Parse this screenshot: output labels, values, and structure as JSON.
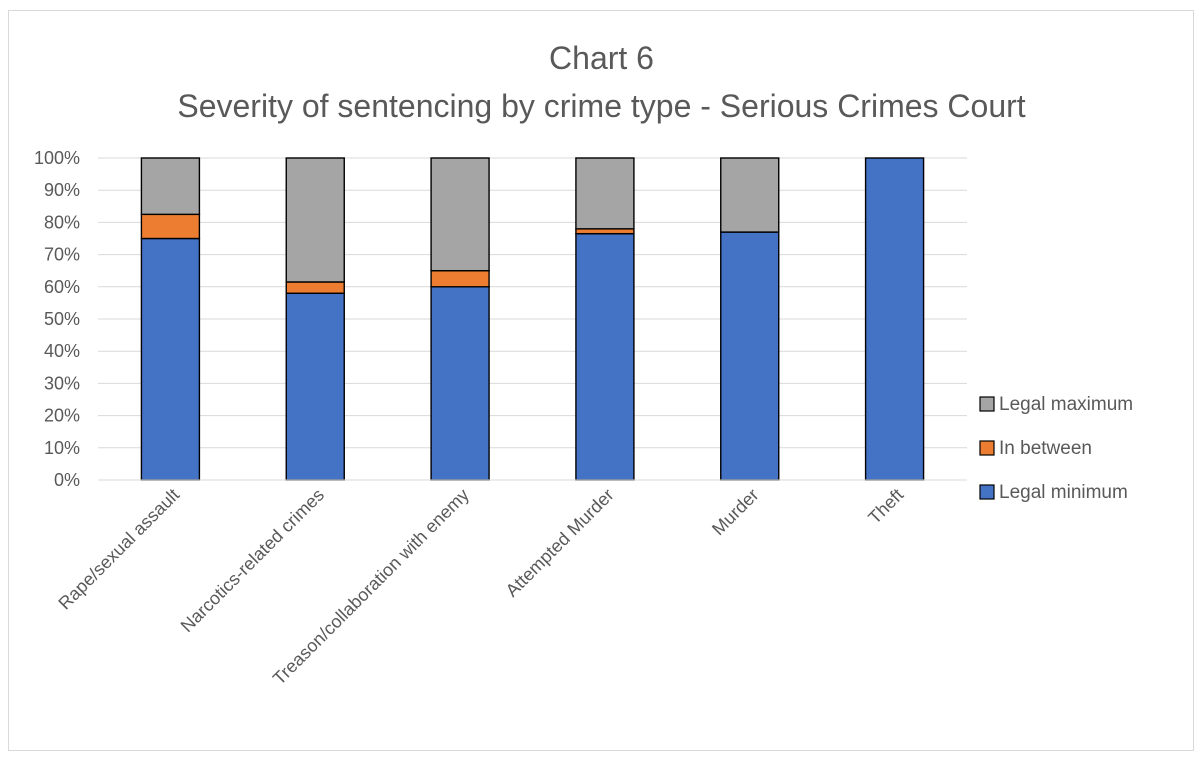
{
  "chart_data": {
    "type": "bar",
    "stacked": true,
    "title": "Chart 6",
    "subtitle": "Severity of sentencing by crime type - Serious Crimes Court",
    "categories": [
      "Rape/sexual assault",
      "Narcotics-related crimes",
      "Treason/collaboration with enemy",
      "Attempted Murder",
      "Murder",
      "Theft"
    ],
    "series": [
      {
        "name": "Legal minimum",
        "color": "#4472c4",
        "values": [
          75,
          58,
          60,
          76.5,
          77,
          100
        ]
      },
      {
        "name": "In between",
        "color": "#ed7d31",
        "values": [
          7.5,
          3.5,
          5,
          1.5,
          0,
          0
        ]
      },
      {
        "name": "Legal maximum",
        "color": "#a5a5a5",
        "values": [
          17.5,
          38.5,
          35,
          22,
          23,
          0
        ]
      }
    ],
    "ylim": [
      0,
      100
    ],
    "yticks": [
      "0%",
      "10%",
      "20%",
      "30%",
      "40%",
      "50%",
      "60%",
      "70%",
      "80%",
      "90%",
      "100%"
    ],
    "grid": true,
    "legend_position": "right",
    "legend_order": [
      "Legal maximum",
      "In between",
      "Legal minimum"
    ]
  }
}
